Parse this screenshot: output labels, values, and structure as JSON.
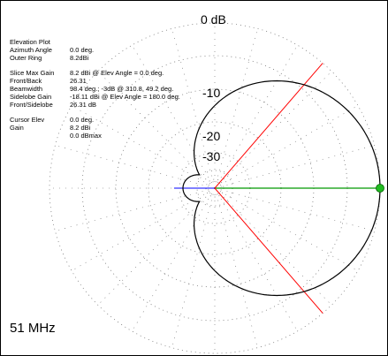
{
  "plot": {
    "ring_labels": [
      "0 dB",
      "-10",
      "-20",
      "-30"
    ],
    "colors": {
      "pattern": "#000000",
      "beamwidth_lines": "#ff0000",
      "cursor_line": "#009900",
      "cursor_dot": "#22bb22",
      "back_line": "#0000ff",
      "grid": "#666666"
    }
  },
  "info": {
    "title": "Elevation Plot",
    "azimuth_label": "Azimuth Angle",
    "azimuth_value": "0.0 deg.",
    "outer_ring_label": "Outer Ring",
    "outer_ring_value": "8.2dBi",
    "slice_max_label": "Slice Max Gain",
    "slice_max_value": "8.2 dBi @ Elev Angle = 0.0 deg.",
    "front_back_label": "Front/Back",
    "front_back_value": "26.31",
    "beamwidth_label": "Beamwidth",
    "beamwidth_value": "98.4 deg.; -3dB @ 310.8, 49.2 deg.",
    "sidelobe_label": "Sidelobe Gain",
    "sidelobe_value": "-18.11 dBi @ Elev Angle = 180.0 deg.",
    "front_sidelobe_label": "Front/Sidelobe",
    "front_sidelobe_value": "26.31 dB",
    "cursor_elev_label": "Cursor Elev",
    "cursor_elev_value": "0.0 deg.",
    "gain_label": "Gain",
    "gain_value_dbi": "8.2 dBi",
    "gain_value_dbmax": "0.0 dBmax"
  },
  "frequency": "51 MHz"
}
